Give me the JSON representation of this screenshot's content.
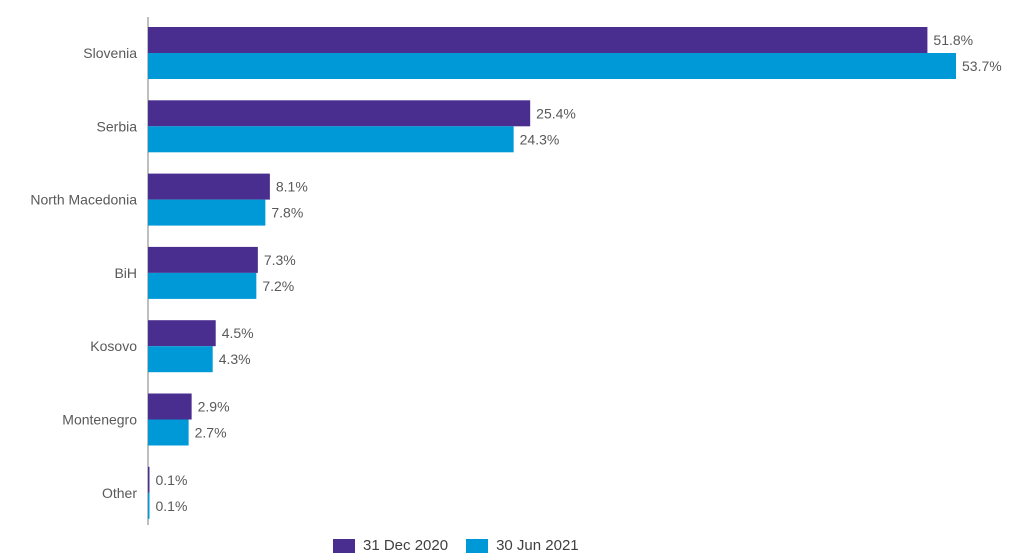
{
  "chart_data": {
    "type": "bar",
    "orientation": "horizontal",
    "categories": [
      "Slovenia",
      "Serbia",
      "North Macedonia",
      "BiH",
      "Kosovo",
      "Montenegro",
      "Other"
    ],
    "series": [
      {
        "name": "31 Dec 2020",
        "color": "#4a2e8f",
        "values": [
          51.8,
          25.4,
          8.1,
          7.3,
          4.5,
          2.9,
          0.1
        ],
        "labels": [
          "51.8%",
          "25.4%",
          "8.1%",
          "7.3%",
          "4.5%",
          "2.9%",
          "0.1%"
        ]
      },
      {
        "name": "30 Jun 2021",
        "color": "#0099d8",
        "values": [
          53.7,
          24.3,
          7.8,
          7.2,
          4.3,
          2.7,
          0.1
        ],
        "labels": [
          "53.7%",
          "24.3%",
          "7.8%",
          "7.2%",
          "4.3%",
          "2.7%",
          "0.1%"
        ]
      }
    ],
    "xlim": [
      0,
      53.7
    ],
    "grid": false,
    "legend": "bottom"
  }
}
